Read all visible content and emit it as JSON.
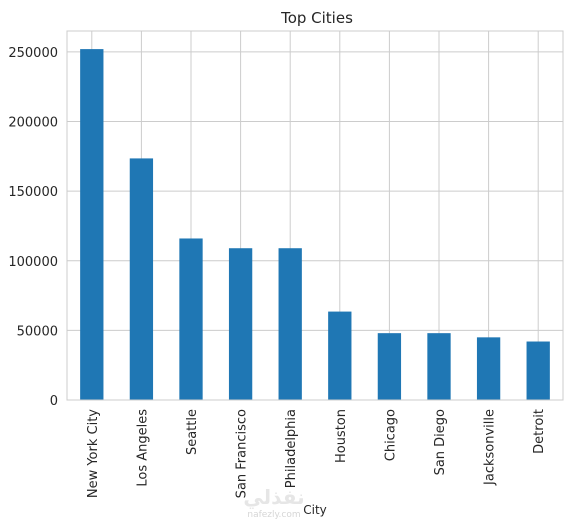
{
  "watermark": {
    "text": "نفذلي",
    "subtext": "nafezly.com"
  },
  "chart_data": {
    "type": "bar",
    "title": "Top Cities",
    "xlabel": "City",
    "ylabel": "",
    "categories": [
      "New York City",
      "Los Angeles",
      "Seattle",
      "San Francisco",
      "Philadelphia",
      "Houston",
      "Chicago",
      "San Diego",
      "Jacksonville",
      "Detroit"
    ],
    "values": [
      252000,
      173500,
      116000,
      109000,
      109000,
      63500,
      48000,
      48000,
      45000,
      42000
    ],
    "ylim": [
      0,
      265000
    ],
    "yticks": [
      0,
      50000,
      100000,
      150000,
      200000,
      250000
    ],
    "ytick_labels": [
      "0",
      "50000",
      "100000",
      "150000",
      "200000",
      "250000"
    ],
    "grid": true,
    "bar_color": "#1f77b4",
    "grid_color": "#cccccc",
    "axis_color": "#cccccc"
  }
}
